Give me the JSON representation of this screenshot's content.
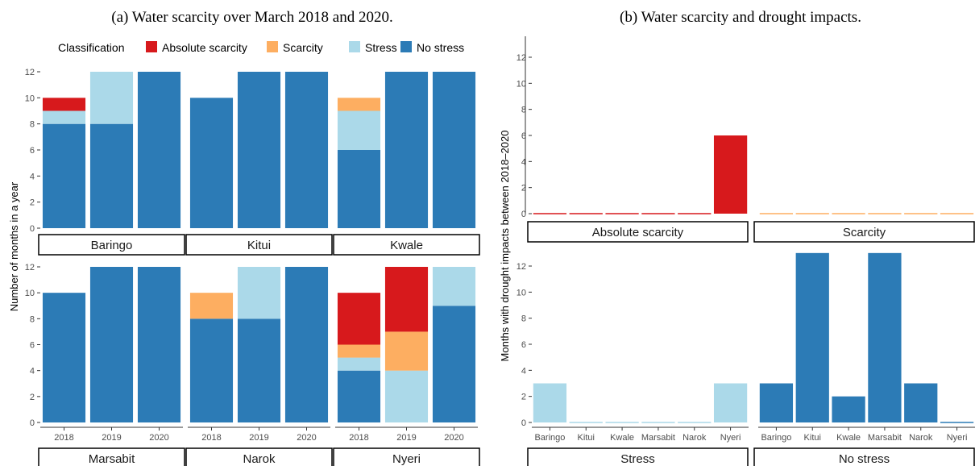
{
  "captions": {
    "a": "(a) Water scarcity over March 2018 and 2020.",
    "b": "(b) Water scarcity and drought impacts."
  },
  "colors": {
    "Absolute scarcity": "#d7191c",
    "Scarcity": "#fdae61",
    "Stress": "#abd9e9",
    "No stress": "#2c7bb6"
  },
  "chart_data": [
    {
      "type": "bar",
      "stacked": true,
      "title": "(a) Water scarcity over March 2018 and 2020.",
      "ylabel": "Number of months in a year",
      "ylim": [
        0,
        12
      ],
      "yticks": [
        0,
        2,
        4,
        6,
        8,
        10,
        12
      ],
      "legend": {
        "title": "Classification",
        "placement": "top",
        "entries": [
          "Absolute scarcity",
          "Scarcity",
          "Stress",
          "No stress"
        ]
      },
      "categories": [
        "2018",
        "2019",
        "2020"
      ],
      "stack_order": [
        "No stress",
        "Stress",
        "Scarcity",
        "Absolute scarcity"
      ],
      "facets": [
        {
          "name": "Baringo",
          "bars": [
            {
              "No stress": 8,
              "Stress": 1,
              "Scarcity": 0,
              "Absolute scarcity": 1
            },
            {
              "No stress": 8,
              "Stress": 4,
              "Scarcity": 0,
              "Absolute scarcity": 0
            },
            {
              "No stress": 12,
              "Stress": 0,
              "Scarcity": 0,
              "Absolute scarcity": 0
            }
          ]
        },
        {
          "name": "Kitui",
          "bars": [
            {
              "No stress": 10,
              "Stress": 0,
              "Scarcity": 0,
              "Absolute scarcity": 0
            },
            {
              "No stress": 12,
              "Stress": 0,
              "Scarcity": 0,
              "Absolute scarcity": 0
            },
            {
              "No stress": 12,
              "Stress": 0,
              "Scarcity": 0,
              "Absolute scarcity": 0
            }
          ]
        },
        {
          "name": "Kwale",
          "bars": [
            {
              "No stress": 6,
              "Stress": 3,
              "Scarcity": 1,
              "Absolute scarcity": 0
            },
            {
              "No stress": 12,
              "Stress": 0,
              "Scarcity": 0,
              "Absolute scarcity": 0
            },
            {
              "No stress": 12,
              "Stress": 0,
              "Scarcity": 0,
              "Absolute scarcity": 0
            }
          ]
        },
        {
          "name": "Marsabit",
          "bars": [
            {
              "No stress": 10,
              "Stress": 0,
              "Scarcity": 0,
              "Absolute scarcity": 0
            },
            {
              "No stress": 12,
              "Stress": 0,
              "Scarcity": 0,
              "Absolute scarcity": 0
            },
            {
              "No stress": 12,
              "Stress": 0,
              "Scarcity": 0,
              "Absolute scarcity": 0
            }
          ]
        },
        {
          "name": "Narok",
          "bars": [
            {
              "No stress": 8,
              "Stress": 0,
              "Scarcity": 2,
              "Absolute scarcity": 0
            },
            {
              "No stress": 8,
              "Stress": 4,
              "Scarcity": 0,
              "Absolute scarcity": 0
            },
            {
              "No stress": 12,
              "Stress": 0,
              "Scarcity": 0,
              "Absolute scarcity": 0
            }
          ]
        },
        {
          "name": "Nyeri",
          "bars": [
            {
              "No stress": 4,
              "Stress": 1,
              "Scarcity": 1,
              "Absolute scarcity": 4
            },
            {
              "No stress": 0,
              "Stress": 4,
              "Scarcity": 3,
              "Absolute scarcity": 5
            },
            {
              "No stress": 9,
              "Stress": 3,
              "Scarcity": 0,
              "Absolute scarcity": 0
            }
          ]
        }
      ]
    },
    {
      "type": "bar",
      "title": "(b) Water scarcity and drought impacts.",
      "ylabel": "Months with drought impacts between 2018–2020",
      "ylim": [
        0,
        13
      ],
      "yticks": [
        0,
        2,
        4,
        6,
        8,
        10,
        12
      ],
      "categories": [
        "Baringo",
        "Kitui",
        "Kwale",
        "Marsabit",
        "Narok",
        "Nyeri"
      ],
      "facets": [
        {
          "name": "Absolute scarcity",
          "values": [
            0,
            0,
            0,
            0,
            0,
            6
          ]
        },
        {
          "name": "Scarcity",
          "values": [
            0,
            0,
            0,
            0,
            0,
            0
          ]
        },
        {
          "name": "Stress",
          "values": [
            3,
            0,
            0,
            0,
            0,
            3
          ]
        },
        {
          "name": "No stress",
          "values": [
            3,
            13,
            2,
            13,
            3,
            0
          ]
        }
      ]
    }
  ]
}
